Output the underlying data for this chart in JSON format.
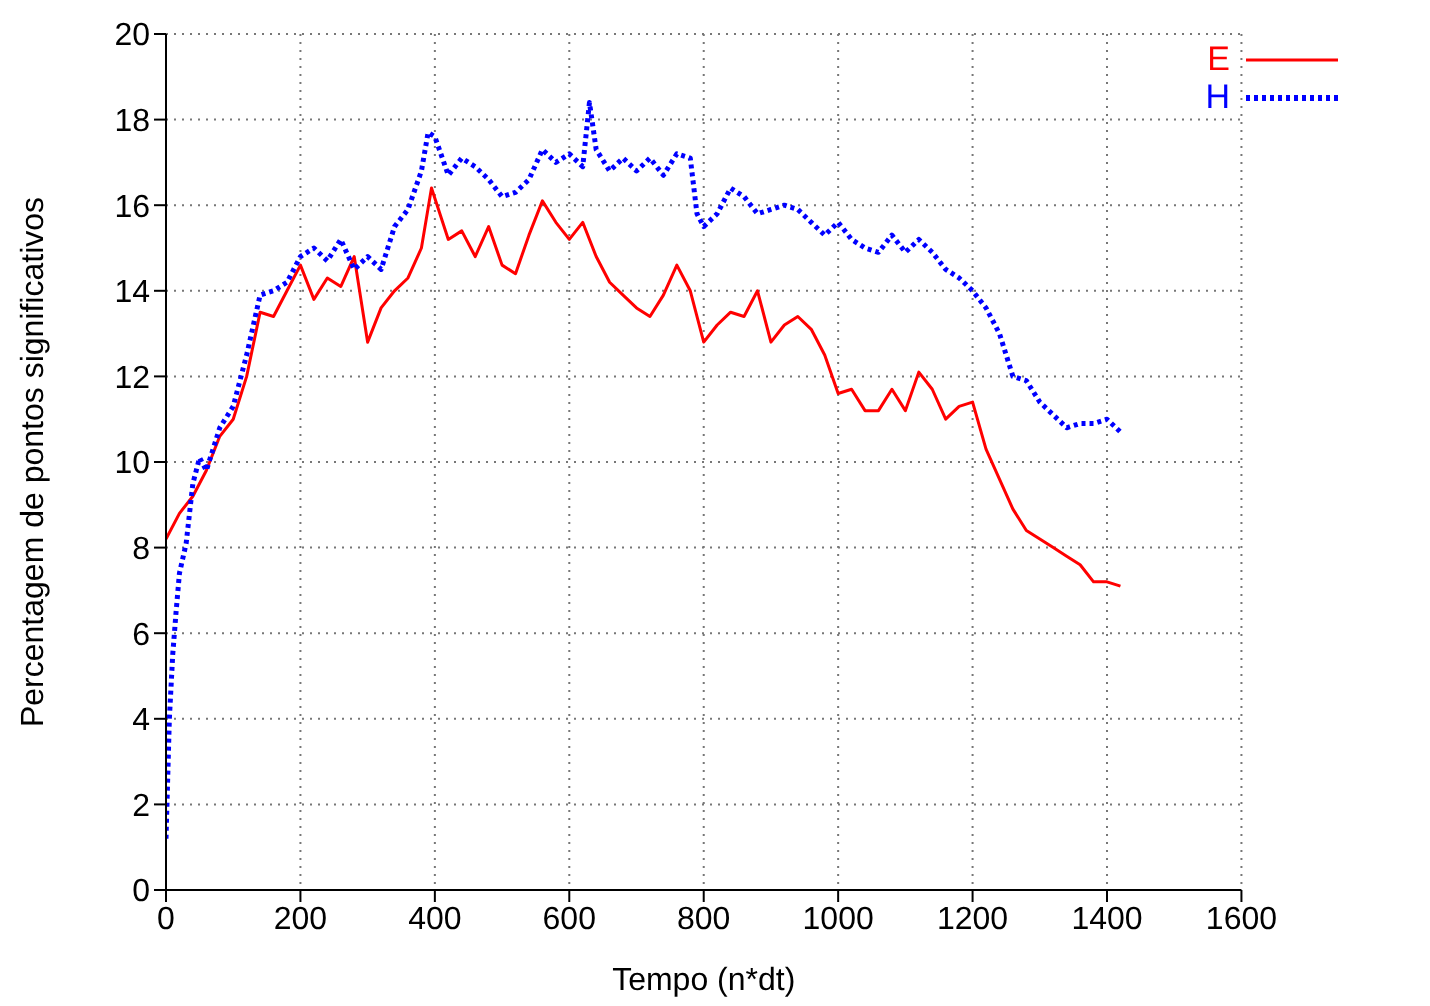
{
  "chart_data": {
    "type": "line",
    "xlabel": "Tempo (n*dt)",
    "ylabel": "Percentagem de pontos significativos",
    "xlim": [
      0,
      1600
    ],
    "xticks": [
      0,
      200,
      400,
      600,
      800,
      1000,
      1200,
      1400,
      1600
    ],
    "ylim": [
      0,
      20
    ],
    "yticks": [
      0,
      2,
      4,
      6,
      8,
      10,
      12,
      14,
      16,
      18,
      20
    ],
    "grid": true,
    "legend": "top right",
    "marker": "none",
    "series": [
      {
        "name": "E",
        "color": "#ff0000",
        "line_style": "solid",
        "x": [
          0,
          20,
          40,
          60,
          80,
          100,
          120,
          140,
          160,
          180,
          200,
          220,
          240,
          260,
          280,
          300,
          320,
          340,
          360,
          380,
          395,
          420,
          440,
          460,
          480,
          500,
          520,
          540,
          560,
          580,
          600,
          620,
          640,
          660,
          680,
          700,
          720,
          740,
          760,
          780,
          800,
          820,
          840,
          860,
          880,
          900,
          920,
          940,
          960,
          980,
          1000,
          1020,
          1040,
          1060,
          1080,
          1100,
          1120,
          1140,
          1160,
          1180,
          1200,
          1220,
          1240,
          1260,
          1280,
          1300,
          1320,
          1340,
          1360,
          1380,
          1400,
          1420
        ],
        "values": [
          8.2,
          8.8,
          9.2,
          9.8,
          10.6,
          11,
          12,
          13.5,
          13.4,
          14,
          14.6,
          13.8,
          14.3,
          14.1,
          14.8,
          12.8,
          13.6,
          14,
          14.3,
          15,
          16.4,
          15.2,
          15.4,
          14.8,
          15.5,
          14.6,
          14.4,
          15.3,
          16.1,
          15.6,
          15.2,
          15.6,
          14.8,
          14.2,
          13.9,
          13.6,
          13.4,
          13.9,
          14.6,
          14,
          12.8,
          13.2,
          13.5,
          13.4,
          14,
          12.8,
          13.2,
          13.4,
          13.1,
          12.5,
          11.6,
          11.7,
          11.2,
          11.2,
          11.7,
          11.2,
          12.1,
          11.7,
          11,
          11.3,
          11.4,
          10.3,
          9.6,
          8.9,
          8.4,
          8.2,
          8,
          7.8,
          7.6,
          7.2,
          7.2,
          7.1
        ]
      },
      {
        "name": "H",
        "color": "#0000ff",
        "line_style": "dotted",
        "x": [
          0,
          5,
          10,
          15,
          20,
          30,
          40,
          50,
          60,
          80,
          100,
          120,
          140,
          160,
          180,
          200,
          220,
          240,
          260,
          280,
          300,
          320,
          340,
          360,
          380,
          390,
          400,
          420,
          440,
          460,
          480,
          500,
          520,
          540,
          560,
          580,
          600,
          620,
          630,
          640,
          660,
          680,
          700,
          720,
          740,
          760,
          780,
          790,
          800,
          820,
          840,
          860,
          880,
          900,
          920,
          940,
          960,
          980,
          1000,
          1020,
          1040,
          1060,
          1080,
          1100,
          1120,
          1140,
          1160,
          1180,
          1200,
          1220,
          1240,
          1260,
          1280,
          1300,
          1320,
          1340,
          1360,
          1380,
          1400,
          1420
        ],
        "values": [
          1.2,
          4,
          5.5,
          6.5,
          7.4,
          8.1,
          9.5,
          10.1,
          9.8,
          10.8,
          11.3,
          12.5,
          13.9,
          14,
          14.2,
          14.8,
          15,
          14.7,
          15.2,
          14.5,
          14.8,
          14.5,
          15.5,
          15.9,
          16.8,
          17.7,
          17.6,
          16.7,
          17.1,
          16.9,
          16.6,
          16.2,
          16.3,
          16.6,
          17.3,
          17,
          17.2,
          16.9,
          18.4,
          17.3,
          16.8,
          17.1,
          16.8,
          17.1,
          16.7,
          17.2,
          17.1,
          15.8,
          15.5,
          15.8,
          16.4,
          16.2,
          15.8,
          15.9,
          16,
          15.9,
          15.6,
          15.3,
          15.6,
          15.2,
          15,
          14.9,
          15.3,
          14.9,
          15.2,
          14.9,
          14.5,
          14.3,
          14,
          13.6,
          13,
          12,
          11.9,
          11.4,
          11.1,
          10.8,
          10.9,
          10.9,
          11,
          10.7
        ]
      }
    ]
  }
}
